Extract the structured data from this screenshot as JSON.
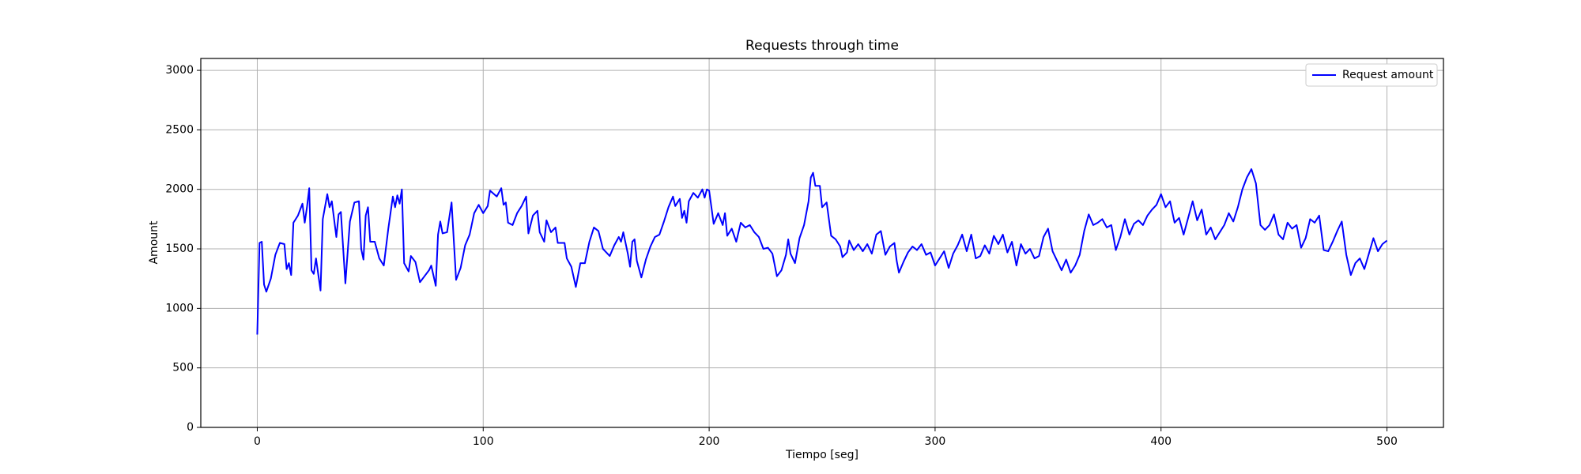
{
  "chart_data": {
    "type": "line",
    "title": "Requests through time",
    "xlabel": "Tiempo [seg]",
    "ylabel": "Amount",
    "x": [
      0,
      1,
      2,
      3,
      4,
      6,
      8,
      10,
      12,
      13,
      14,
      15,
      16,
      18,
      20,
      21,
      22,
      23,
      24,
      25,
      26,
      28,
      29,
      31,
      32,
      33,
      35,
      36,
      37,
      39,
      41,
      43,
      45,
      46,
      47,
      48,
      49,
      50,
      52,
      54,
      56,
      58,
      60,
      61,
      62,
      63,
      64,
      65,
      67,
      68,
      70,
      72,
      74,
      76,
      77,
      79,
      80,
      81,
      82,
      84,
      86,
      88,
      90,
      92,
      94,
      96,
      98,
      100,
      102,
      103,
      106,
      108,
      109,
      110,
      111,
      113,
      115,
      117,
      119,
      120,
      122,
      124,
      125,
      127,
      128,
      130,
      132,
      133,
      136,
      137,
      139,
      141,
      143,
      145,
      147,
      149,
      151,
      153,
      156,
      158,
      160,
      161,
      162,
      164,
      165,
      166,
      167,
      168,
      170,
      172,
      174,
      176,
      178,
      180,
      182,
      184,
      185,
      187,
      188,
      189,
      190,
      191,
      193,
      195,
      197,
      198,
      199,
      200,
      202,
      204,
      206,
      207,
      208,
      210,
      212,
      214,
      216,
      218,
      220,
      222,
      224,
      226,
      228,
      230,
      232,
      234,
      235,
      236,
      238,
      240,
      242,
      244,
      245,
      246,
      247,
      249,
      250,
      252,
      254,
      256,
      258,
      259,
      261,
      262,
      264,
      266,
      268,
      270,
      272,
      274,
      276,
      278,
      280,
      282,
      283,
      284,
      286,
      288,
      290,
      292,
      294,
      296,
      298,
      300,
      302,
      304,
      306,
      308,
      310,
      312,
      314,
      316,
      318,
      320,
      322,
      324,
      326,
      328,
      330,
      332,
      334,
      336,
      338,
      340,
      342,
      344,
      346,
      348,
      350,
      352,
      354,
      356,
      358,
      360,
      362,
      364,
      366,
      368,
      370,
      372,
      374,
      376,
      378,
      380,
      382,
      384,
      386,
      388,
      390,
      392,
      394,
      396,
      398,
      400,
      402,
      404,
      406,
      408,
      410,
      412,
      414,
      416,
      418,
      420,
      422,
      424,
      426,
      428,
      430,
      432,
      434,
      436,
      438,
      440,
      442,
      444,
      446,
      448,
      450,
      452,
      454,
      456,
      458,
      460,
      462,
      464,
      466,
      468,
      470,
      472,
      474,
      476,
      478,
      480,
      482,
      484,
      486,
      488,
      490,
      492,
      494,
      496,
      498,
      500
    ],
    "series": [
      {
        "name": "Request amount",
        "color": "#0000ff",
        "values": [
          780,
          1550,
          1560,
          1200,
          1140,
          1250,
          1450,
          1550,
          1540,
          1330,
          1380,
          1280,
          1720,
          1780,
          1880,
          1720,
          1850,
          2010,
          1320,
          1290,
          1420,
          1150,
          1750,
          1960,
          1850,
          1900,
          1600,
          1790,
          1810,
          1210,
          1730,
          1890,
          1900,
          1500,
          1410,
          1780,
          1850,
          1560,
          1560,
          1420,
          1360,
          1670,
          1940,
          1850,
          1950,
          1880,
          2000,
          1380,
          1310,
          1440,
          1390,
          1220,
          1270,
          1320,
          1360,
          1190,
          1620,
          1730,
          1630,
          1640,
          1890,
          1240,
          1340,
          1530,
          1620,
          1800,
          1870,
          1800,
          1860,
          1990,
          1940,
          2010,
          1870,
          1890,
          1720,
          1700,
          1800,
          1860,
          1940,
          1630,
          1780,
          1820,
          1640,
          1560,
          1740,
          1640,
          1680,
          1550,
          1550,
          1420,
          1350,
          1180,
          1380,
          1380,
          1560,
          1680,
          1650,
          1500,
          1440,
          1530,
          1600,
          1560,
          1640,
          1460,
          1350,
          1560,
          1580,
          1400,
          1260,
          1410,
          1520,
          1600,
          1620,
          1730,
          1850,
          1940,
          1860,
          1920,
          1760,
          1820,
          1720,
          1900,
          1970,
          1930,
          2000,
          1930,
          2000,
          1990,
          1710,
          1800,
          1700,
          1800,
          1610,
          1670,
          1560,
          1720,
          1680,
          1700,
          1640,
          1600,
          1500,
          1510,
          1460,
          1270,
          1320,
          1450,
          1580,
          1460,
          1380,
          1590,
          1700,
          1900,
          2100,
          2140,
          2030,
          2030,
          1850,
          1890,
          1610,
          1580,
          1520,
          1430,
          1470,
          1570,
          1490,
          1540,
          1480,
          1540,
          1460,
          1620,
          1650,
          1450,
          1520,
          1550,
          1400,
          1300,
          1390,
          1470,
          1520,
          1490,
          1540,
          1450,
          1470,
          1360,
          1420,
          1480,
          1340,
          1460,
          1530,
          1620,
          1480,
          1620,
          1420,
          1440,
          1530,
          1460,
          1610,
          1540,
          1620,
          1470,
          1560,
          1360,
          1540,
          1460,
          1500,
          1420,
          1440,
          1600,
          1670,
          1480,
          1400,
          1320,
          1410,
          1300,
          1360,
          1450,
          1650,
          1790,
          1700,
          1720,
          1750,
          1680,
          1700,
          1490,
          1600,
          1750,
          1620,
          1710,
          1740,
          1700,
          1780,
          1830,
          1870,
          1960,
          1850,
          1900,
          1720,
          1760,
          1620,
          1760,
          1900,
          1740,
          1830,
          1620,
          1680,
          1580,
          1640,
          1700,
          1800,
          1730,
          1850,
          2000,
          2100,
          2170,
          2050,
          1700,
          1660,
          1700,
          1790,
          1620,
          1580,
          1720,
          1670,
          1700,
          1510,
          1590,
          1750,
          1720,
          1780,
          1490,
          1480,
          1560,
          1650,
          1730,
          1450,
          1280,
          1380,
          1420,
          1330,
          1460,
          1590,
          1480,
          1540,
          1570
        ]
      }
    ],
    "xlim": [
      -25,
      525
    ],
    "xticks": [
      0,
      100,
      200,
      300,
      400,
      500
    ],
    "ylim": [
      0,
      3100
    ],
    "yticks": [
      0,
      500,
      1000,
      1500,
      2000,
      2500,
      3000
    ],
    "grid": true,
    "legend": "upper right"
  }
}
